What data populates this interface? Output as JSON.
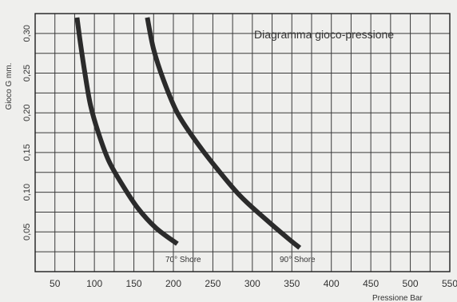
{
  "chart_data": {
    "type": "line",
    "title": "Diagramma gioco-pressione",
    "xlabel": "Pressione Bar",
    "ylabel": "Gioco G mm.",
    "xlim": [
      25,
      550
    ],
    "ylim": [
      0,
      0.325
    ],
    "xticks": [
      "50",
      "100",
      "150",
      "200",
      "250",
      "300",
      "350",
      "400",
      "450",
      "500",
      "550"
    ],
    "yticks": [
      "0,05",
      "0,10",
      "0,15",
      "0,20",
      "0,25",
      "0,30"
    ],
    "grid": true,
    "series": [
      {
        "name": "70° Shore",
        "x": [
          78,
          82,
          88,
          95,
          105,
          118,
          135,
          155,
          178,
          205
        ],
        "y": [
          0.32,
          0.29,
          0.25,
          0.21,
          0.175,
          0.14,
          0.11,
          0.08,
          0.055,
          0.035
        ]
      },
      {
        "name": "90° Shore",
        "x": [
          167,
          175,
          188,
          205,
          228,
          255,
          285,
          318,
          345,
          360
        ],
        "y": [
          0.32,
          0.28,
          0.24,
          0.2,
          0.165,
          0.13,
          0.095,
          0.065,
          0.042,
          0.03
        ]
      }
    ]
  }
}
